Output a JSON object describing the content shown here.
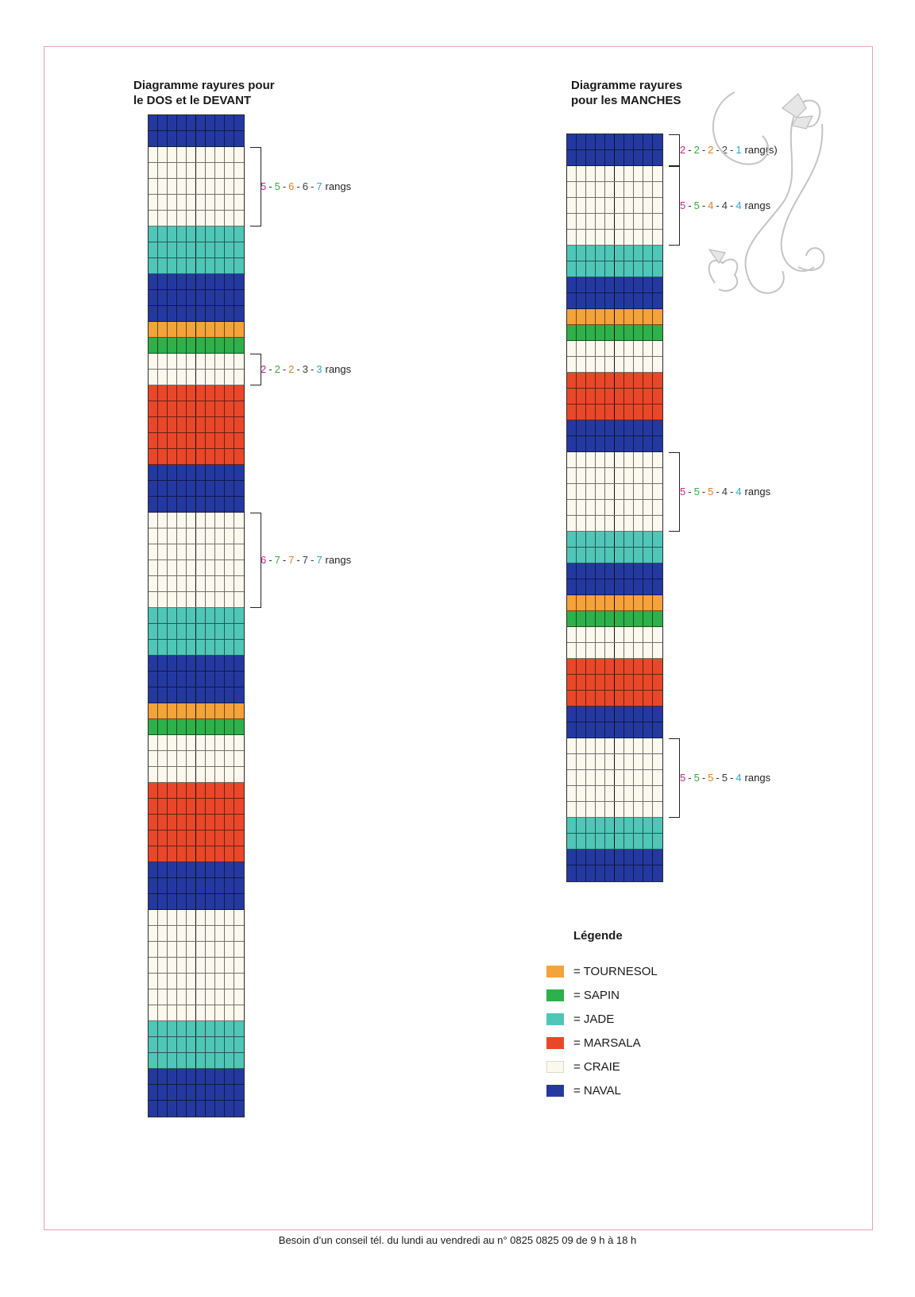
{
  "colors": {
    "tournesol": "#f5a23a",
    "sapin": "#2eb04a",
    "jade": "#4fc6b8",
    "marsala": "#e9472a",
    "craie": "#fbf9ee",
    "naval": "#2439a0"
  },
  "count_colors": [
    "#c0268f",
    "#3aab3a",
    "#e07e26",
    "#3a3a3a",
    "#2aa8c8"
  ],
  "dos": {
    "title": "Diagramme rayures pour\nle DOS et le DEVANT",
    "columns": 10,
    "stripes": [
      {
        "color": "naval",
        "rows": 2
      },
      {
        "color": "craie",
        "rows": 5
      },
      {
        "color": "jade",
        "rows": 3
      },
      {
        "color": "naval",
        "rows": 3
      },
      {
        "color": "tournesol",
        "rows": 1
      },
      {
        "color": "sapin",
        "rows": 1
      },
      {
        "color": "craie",
        "rows": 2
      },
      {
        "color": "marsala",
        "rows": 5
      },
      {
        "color": "naval",
        "rows": 3
      },
      {
        "color": "craie",
        "rows": 6
      },
      {
        "color": "jade",
        "rows": 3
      },
      {
        "color": "naval",
        "rows": 3
      },
      {
        "color": "tournesol",
        "rows": 1
      },
      {
        "color": "sapin",
        "rows": 1
      },
      {
        "color": "craie",
        "rows": 3
      },
      {
        "color": "marsala",
        "rows": 5
      },
      {
        "color": "naval",
        "rows": 3
      },
      {
        "color": "craie",
        "rows": 7
      },
      {
        "color": "jade",
        "rows": 3
      },
      {
        "color": "naval",
        "rows": 3
      }
    ],
    "annotations": [
      {
        "stripe_index": 1,
        "counts": [
          "5",
          "5",
          "6",
          "6",
          "7"
        ],
        "unit": "rangs"
      },
      {
        "stripe_index": 6,
        "counts": [
          "2",
          "2",
          "2",
          "3",
          "3"
        ],
        "unit": "rangs"
      },
      {
        "stripe_index": 9,
        "counts": [
          "6",
          "7",
          "7",
          "7",
          "7"
        ],
        "unit": "rangs"
      }
    ]
  },
  "manches": {
    "title": "Diagramme rayures\npour les MANCHES",
    "columns": 10,
    "stripes": [
      {
        "color": "naval",
        "rows": 2
      },
      {
        "color": "craie",
        "rows": 5
      },
      {
        "color": "jade",
        "rows": 2
      },
      {
        "color": "naval",
        "rows": 2
      },
      {
        "color": "tournesol",
        "rows": 1
      },
      {
        "color": "sapin",
        "rows": 1
      },
      {
        "color": "craie",
        "rows": 2
      },
      {
        "color": "marsala",
        "rows": 3
      },
      {
        "color": "naval",
        "rows": 2
      },
      {
        "color": "craie",
        "rows": 5
      },
      {
        "color": "jade",
        "rows": 2
      },
      {
        "color": "naval",
        "rows": 2
      },
      {
        "color": "tournesol",
        "rows": 1
      },
      {
        "color": "sapin",
        "rows": 1
      },
      {
        "color": "craie",
        "rows": 2
      },
      {
        "color": "marsala",
        "rows": 3
      },
      {
        "color": "naval",
        "rows": 2
      },
      {
        "color": "craie",
        "rows": 5
      },
      {
        "color": "jade",
        "rows": 2
      },
      {
        "color": "naval",
        "rows": 2
      }
    ],
    "annotations": [
      {
        "stripe_index": 0,
        "counts": [
          "2",
          "2",
          "2",
          "2",
          "1"
        ],
        "unit": "rang(s)"
      },
      {
        "stripe_index": 1,
        "counts": [
          "5",
          "5",
          "4",
          "4",
          "4"
        ],
        "unit": "rangs"
      },
      {
        "stripe_index": 9,
        "counts": [
          "5",
          "5",
          "5",
          "4",
          "4"
        ],
        "unit": "rangs"
      },
      {
        "stripe_index": 17,
        "counts": [
          "5",
          "5",
          "5",
          "5",
          "4"
        ],
        "unit": "rangs"
      }
    ]
  },
  "legend": {
    "title": "Légende",
    "items": [
      {
        "color": "tournesol",
        "label": "= TOURNESOL"
      },
      {
        "color": "sapin",
        "label": "= SAPIN"
      },
      {
        "color": "jade",
        "label": "= JADE"
      },
      {
        "color": "marsala",
        "label": "= MARSALA"
      },
      {
        "color": "craie",
        "label": "= CRAIE"
      },
      {
        "color": "naval",
        "label": "= NAVAL"
      }
    ]
  },
  "decoration": {
    "icon": "butterfly-swirl-icon"
  },
  "footer": {
    "text": "Besoin d’un conseil tél. du lundi au vendredi au n° 0825 0825 09 de 9 h à 18 h"
  }
}
